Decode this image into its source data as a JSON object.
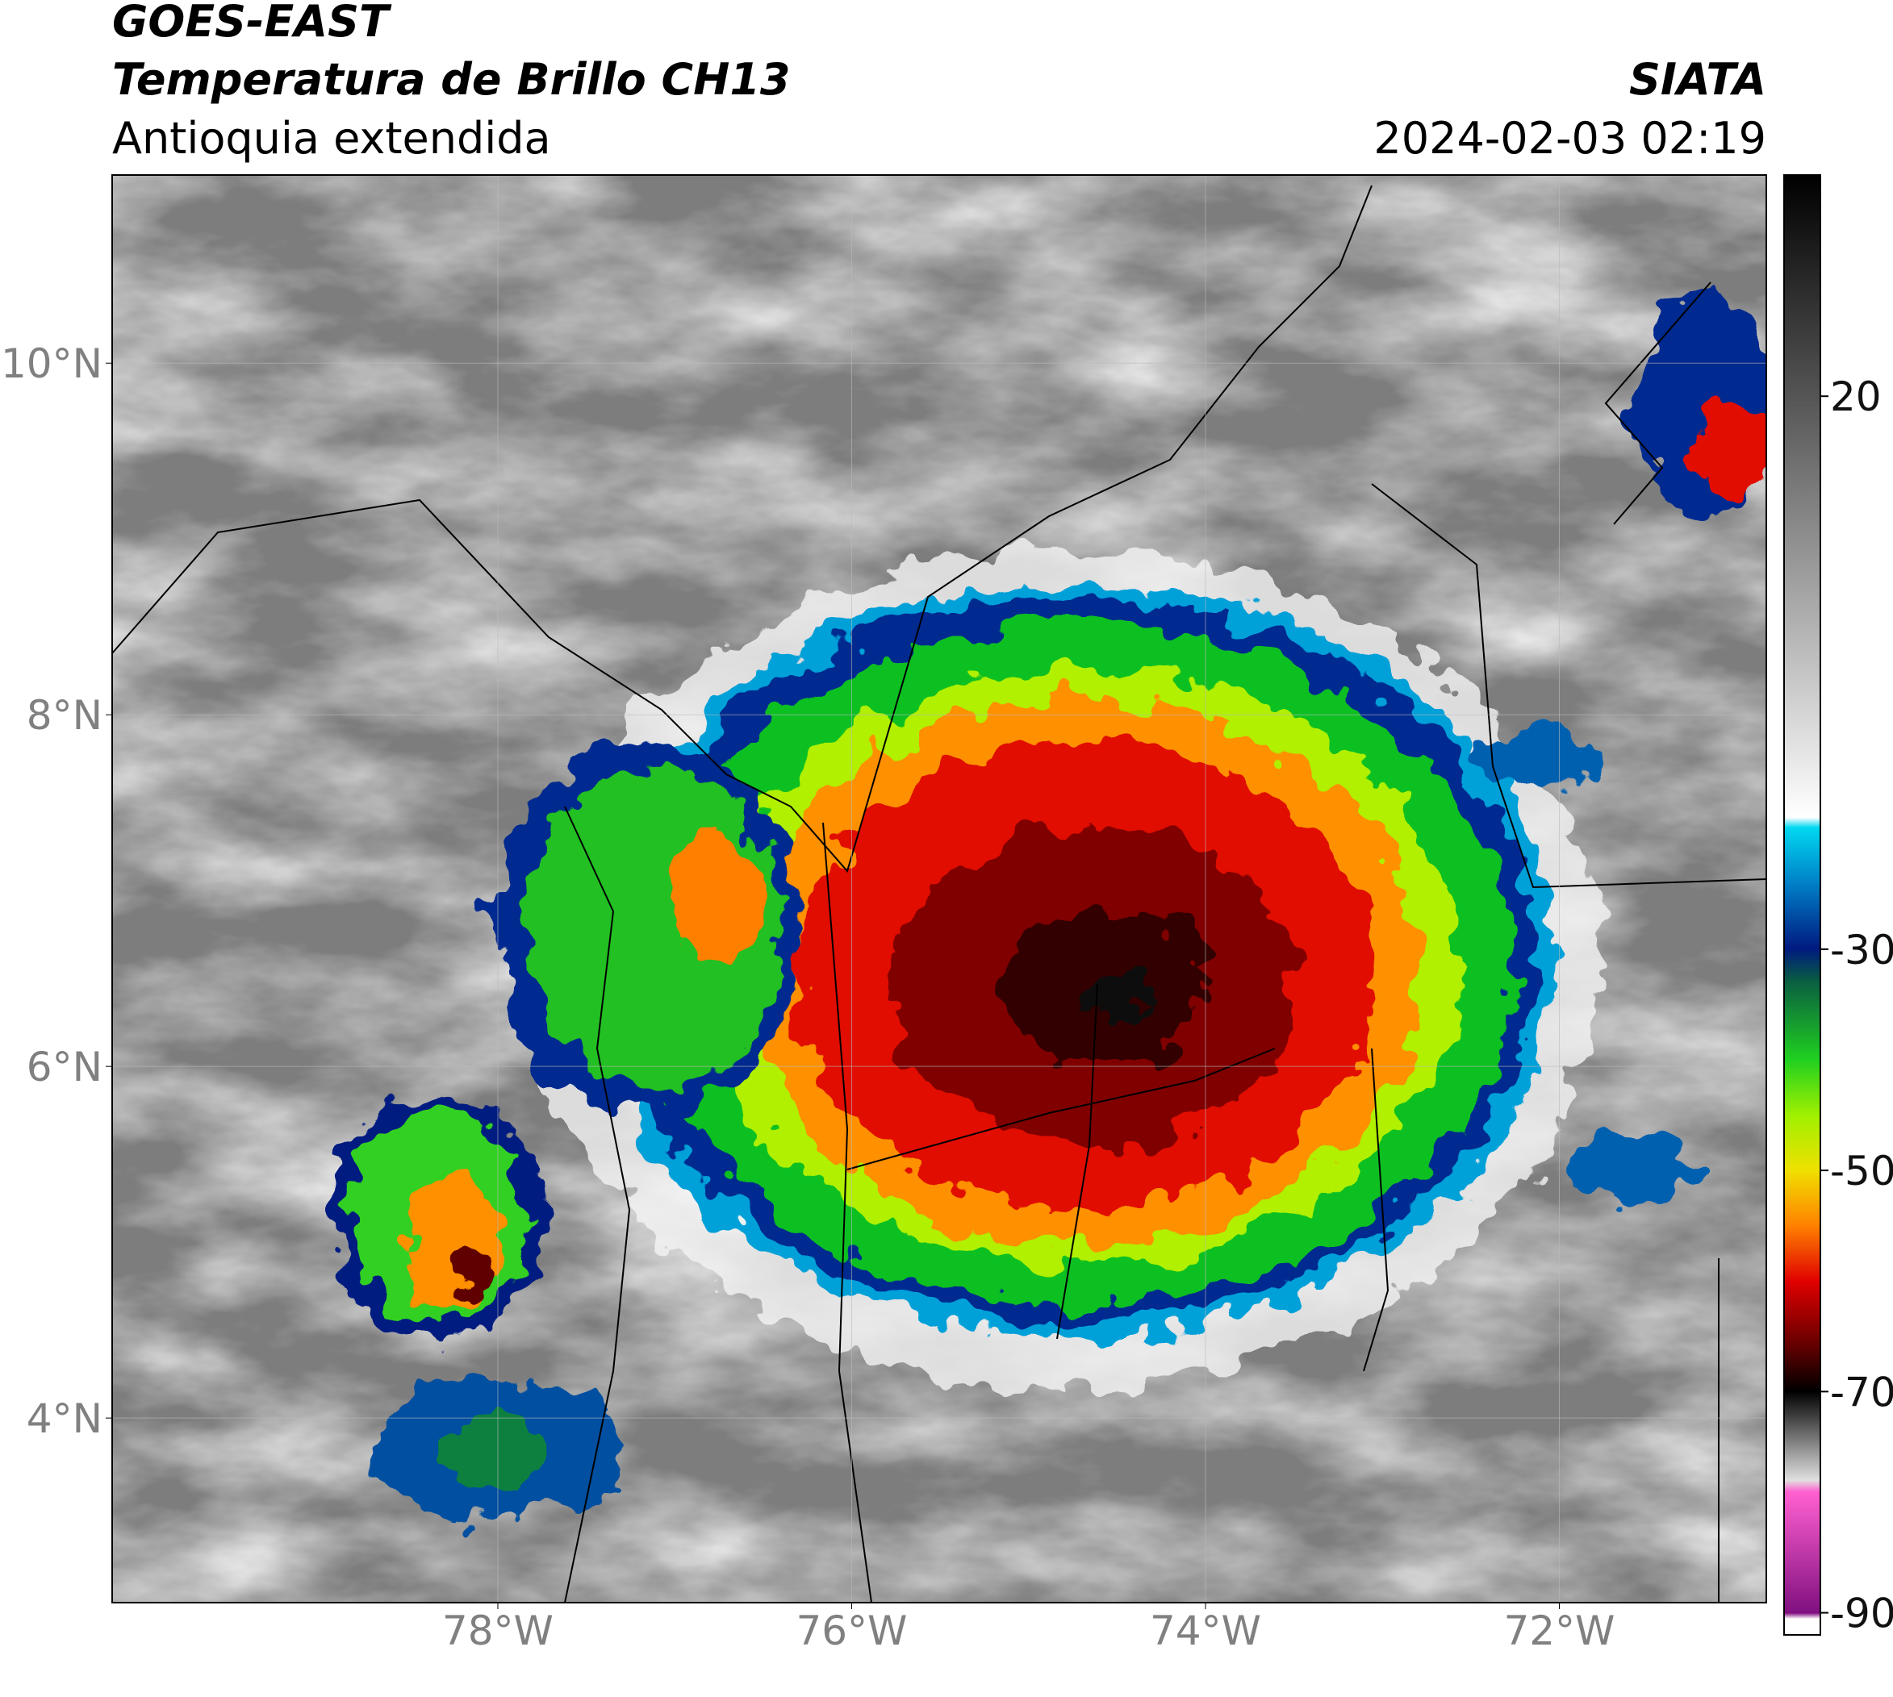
{
  "header": {
    "satellite": "GOES-EAST",
    "product": "Temperatura de Brillo CH13",
    "region": "Antioquia extendida",
    "agency": "SIATA",
    "datetime": "2024-02-03 02:19"
  },
  "map": {
    "xlim": [
      -80.18,
      -70.83
    ],
    "ylim": [
      2.95,
      11.07
    ],
    "lon_ticks": [
      {
        "value": -78,
        "label": "78°W"
      },
      {
        "value": -76,
        "label": "76°W"
      },
      {
        "value": -74,
        "label": "74°W"
      },
      {
        "value": -72,
        "label": "72°W"
      }
    ],
    "lat_ticks": [
      {
        "value": 10,
        "label": "10°N"
      },
      {
        "value": 8,
        "label": "8°N"
      },
      {
        "value": 6,
        "label": "6°N"
      },
      {
        "value": 4,
        "label": "4°N"
      }
    ]
  },
  "colorbar": {
    "lim": [
      -92,
      40
    ],
    "ticks": [
      20,
      -30,
      -50,
      -70,
      -90
    ]
  }
}
